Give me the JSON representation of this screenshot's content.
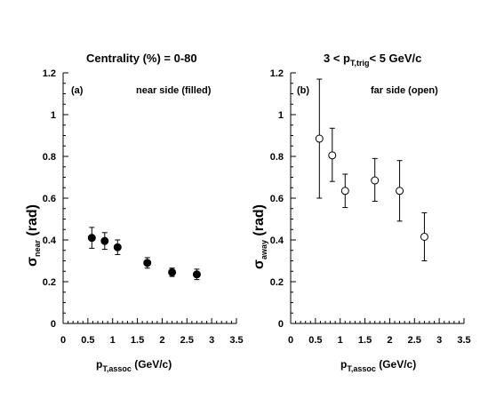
{
  "chart_data": [
    {
      "type": "scatter",
      "panel_label": "(a)",
      "title": "Centrality  (%)  = 0-80",
      "annotation": "near side  (filled)",
      "marker": "filled-circle",
      "ylabel": {
        "main": "σ",
        "sub": "near",
        "rest": " (rad)"
      },
      "xlabel": {
        "main": "p",
        "sub": "T,assoc",
        "rest": " (GeV/c)"
      },
      "xlim": [
        0,
        3.5
      ],
      "ylim": [
        0,
        1.2
      ],
      "xticks": [
        "0",
        "0.5",
        "1",
        "1.5",
        "2",
        "2.5",
        "3",
        "3.5"
      ],
      "yticks": [
        "0",
        "0.2",
        "0.4",
        "0.6",
        "0.8",
        "1",
        "1.2"
      ],
      "points": [
        {
          "x": 0.58,
          "y": 0.41,
          "err": 0.05
        },
        {
          "x": 0.84,
          "y": 0.395,
          "err": 0.04
        },
        {
          "x": 1.1,
          "y": 0.365,
          "err": 0.035
        },
        {
          "x": 1.7,
          "y": 0.29,
          "err": 0.025
        },
        {
          "x": 2.2,
          "y": 0.245,
          "err": 0.02
        },
        {
          "x": 2.7,
          "y": 0.235,
          "err": 0.025
        }
      ]
    },
    {
      "type": "scatter",
      "panel_label": "(b)",
      "title": {
        "prefix": "3 < p",
        "sub": "T,trig",
        "suffix": "< 5 GeV/c"
      },
      "annotation": "far side  (open)",
      "marker": "open-circle",
      "ylabel": {
        "main": "σ",
        "sub": "away",
        "rest": " (rad)"
      },
      "xlabel": {
        "main": "p",
        "sub": "T,assoc",
        "rest": " (GeV/c)"
      },
      "xlim": [
        0,
        3.5
      ],
      "ylim": [
        0,
        1.2
      ],
      "xticks": [
        "0",
        "0.5",
        "1",
        "1.5",
        "2",
        "2.5",
        "3",
        "3.5"
      ],
      "yticks": [
        "0",
        "0.2",
        "0.4",
        "0.6",
        "0.8",
        "1",
        "1.2"
      ],
      "points": [
        {
          "x": 0.58,
          "y": 0.885,
          "err_lo": 0.285,
          "err_hi": 0.285
        },
        {
          "x": 0.84,
          "y": 0.805,
          "err_lo": 0.125,
          "err_hi": 0.13
        },
        {
          "x": 1.1,
          "y": 0.635,
          "err_lo": 0.08,
          "err_hi": 0.08
        },
        {
          "x": 1.7,
          "y": 0.685,
          "err_lo": 0.1,
          "err_hi": 0.105
        },
        {
          "x": 2.2,
          "y": 0.635,
          "err_lo": 0.145,
          "err_hi": 0.145
        },
        {
          "x": 2.7,
          "y": 0.415,
          "err_lo": 0.115,
          "err_hi": 0.115
        }
      ]
    }
  ]
}
